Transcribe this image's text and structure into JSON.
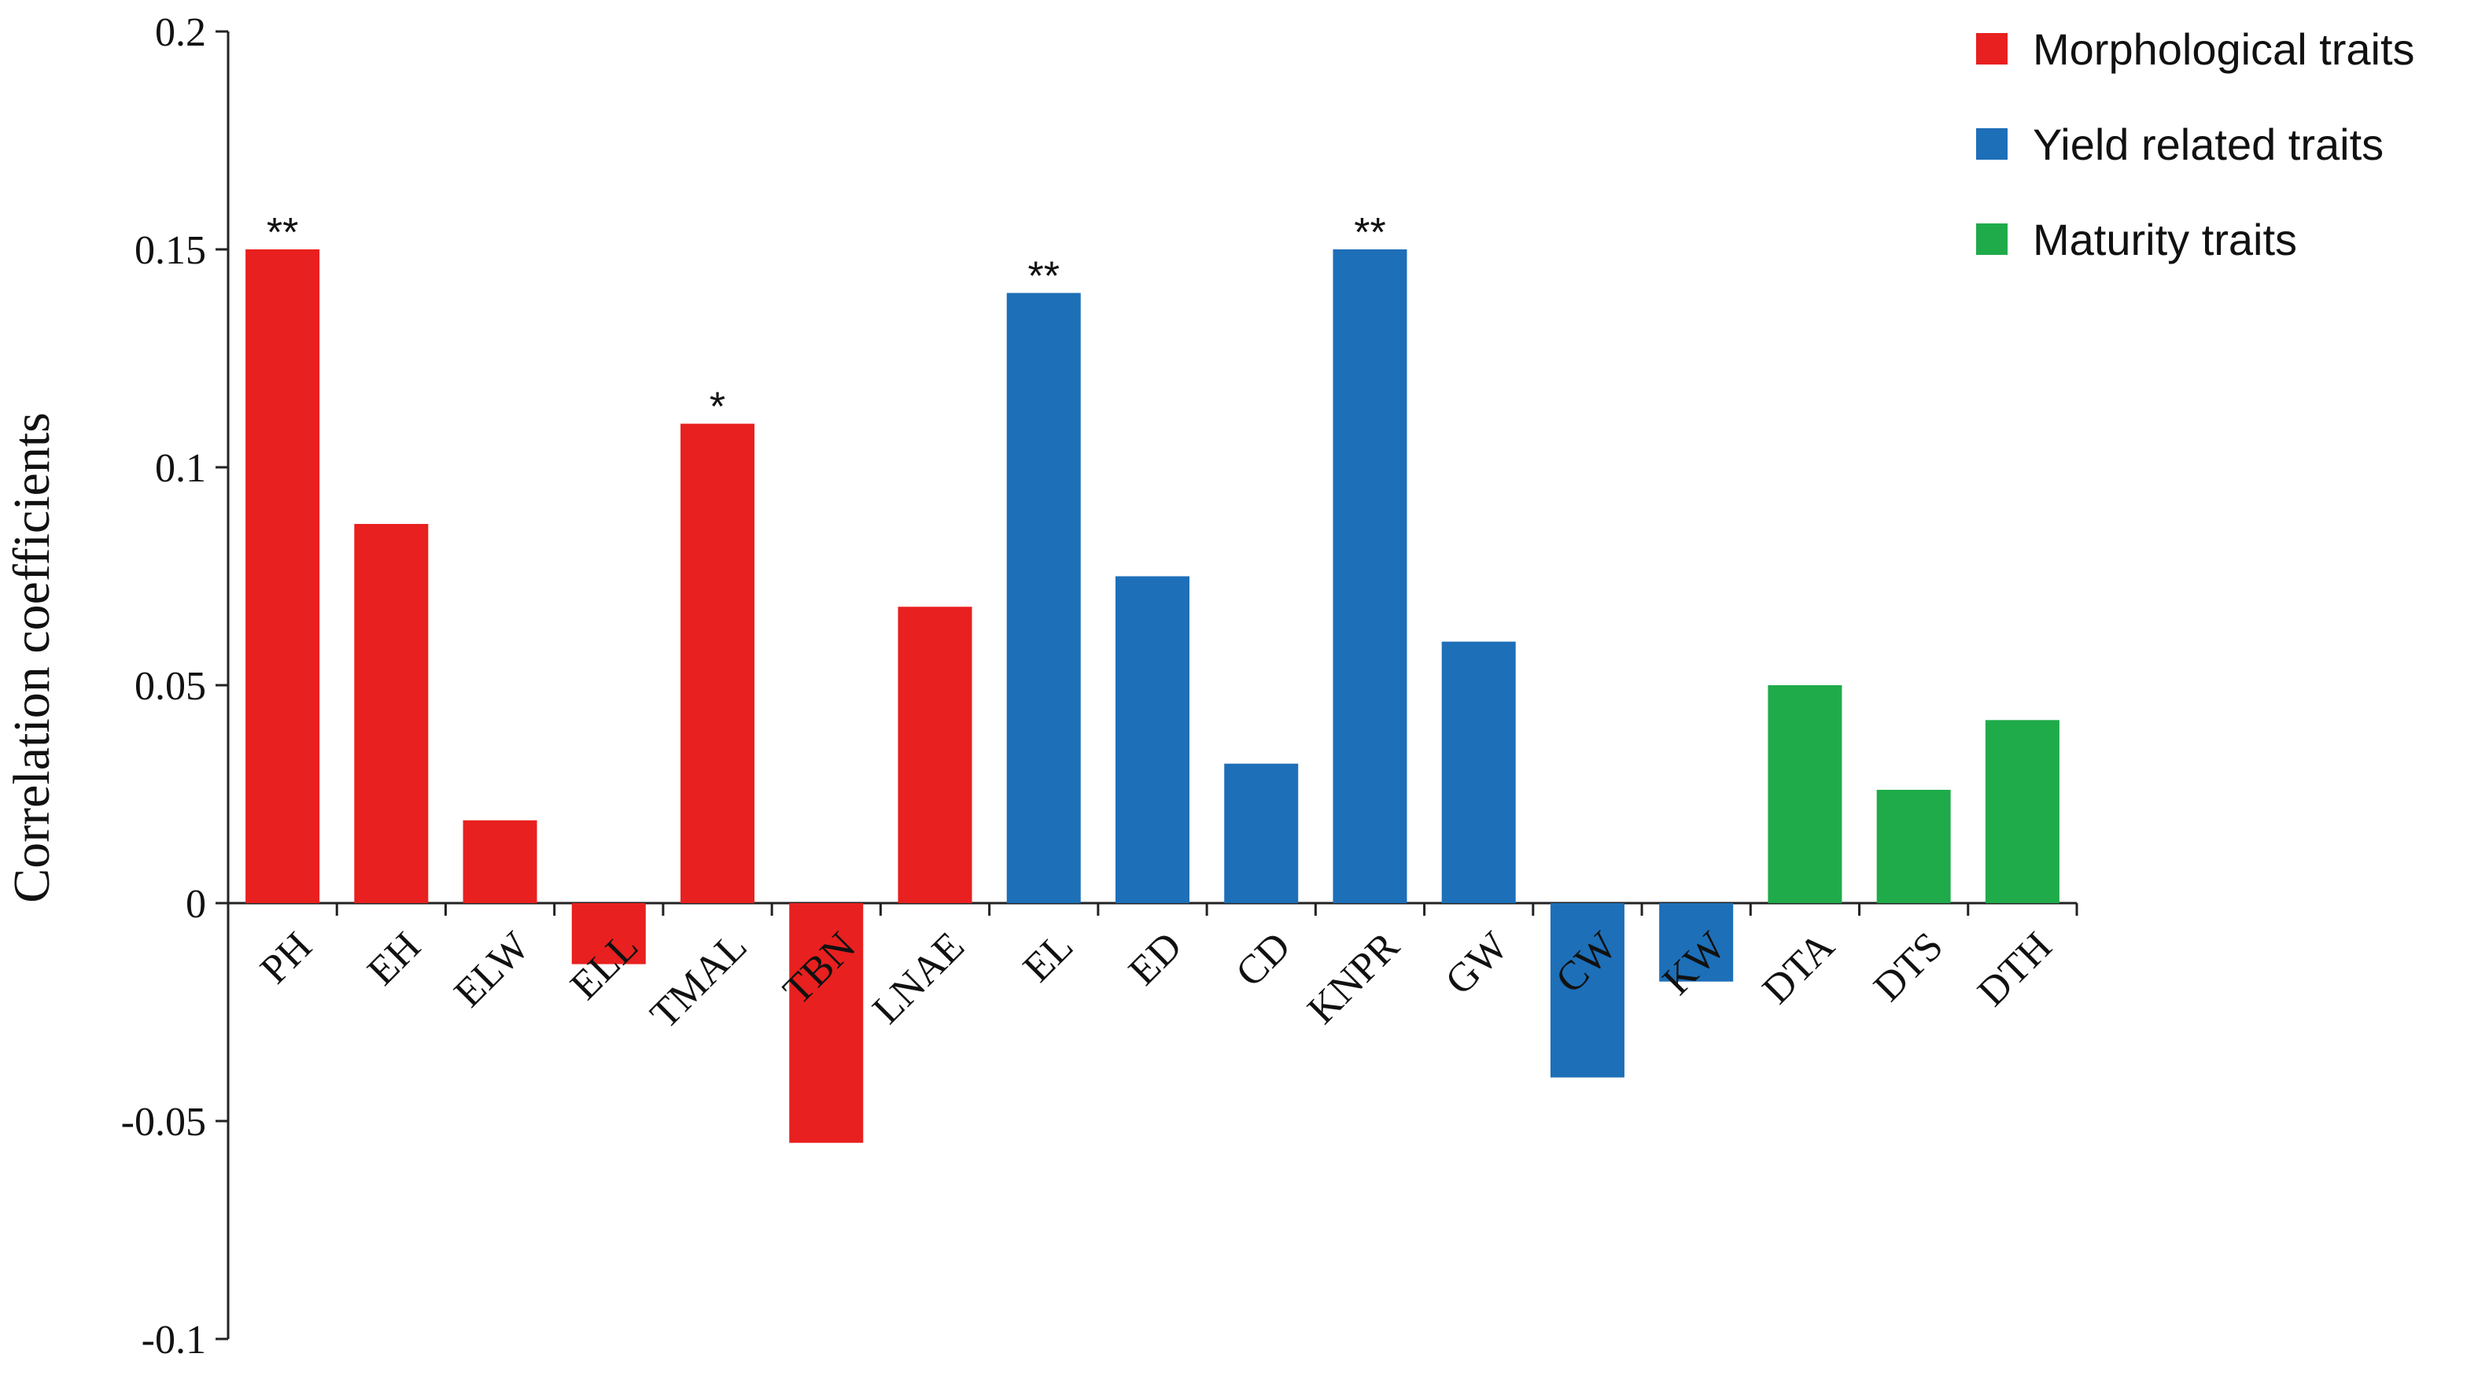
{
  "chart_data": {
    "type": "bar",
    "ylabel": "Correlation coefficients",
    "ylim": [
      -0.1,
      0.2
    ],
    "yticks": [
      0.2,
      0.15,
      0.1,
      0.05,
      0,
      -0.05,
      -0.1
    ],
    "ytick_labels": [
      "0.2",
      "0.15",
      "0.1",
      "0.05",
      "0",
      "-0.05",
      "-0.1"
    ],
    "grid": false,
    "legend_position": "top-right",
    "categories": [
      "PH",
      "EH",
      "ELW",
      "ELL",
      "TMAL",
      "TBN",
      "LNAE",
      "EL",
      "ED",
      "CD",
      "KNPR",
      "GW",
      "CW",
      "KW",
      "DTA",
      "DTS",
      "DTH"
    ],
    "values": [
      0.15,
      0.087,
      0.019,
      -0.014,
      0.11,
      -0.055,
      0.068,
      0.14,
      0.075,
      0.032,
      0.15,
      0.06,
      -0.04,
      -0.018,
      0.05,
      0.026,
      0.042
    ],
    "groups": [
      "Morphological traits",
      "Morphological traits",
      "Morphological traits",
      "Morphological traits",
      "Morphological traits",
      "Morphological traits",
      "Morphological traits",
      "Yield related traits",
      "Yield related traits",
      "Yield related traits",
      "Yield related traits",
      "Yield related traits",
      "Yield related traits",
      "Yield related traits",
      "Maturity traits",
      "Maturity traits",
      "Maturity traits"
    ],
    "annotations": [
      "**",
      "",
      "",
      "",
      "*",
      "",
      "",
      "**",
      "",
      "",
      "**",
      "",
      "",
      "",
      "",
      "",
      ""
    ],
    "legend": [
      {
        "name": "Morphological traits",
        "color": "#e8201f"
      },
      {
        "name": "Yield related traits",
        "color": "#1d6fb8"
      },
      {
        "name": "Maturity traits",
        "color": "#1fab4a"
      }
    ]
  }
}
